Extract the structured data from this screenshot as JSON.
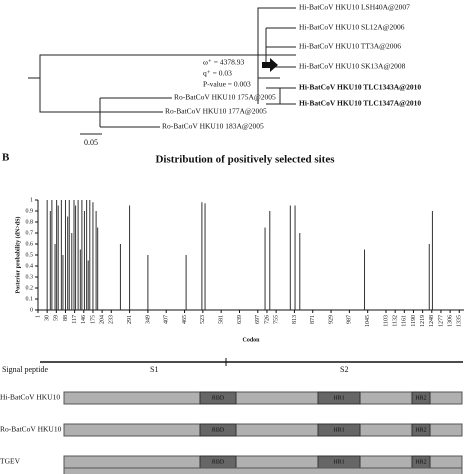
{
  "tree": {
    "taxa": [
      "Hi-BatCoV HKU10 LSH40A@2007",
      "Hi-BatCoV HKU10 SL12A@2006",
      "Hi-BatCoV HKU10 TT3A@2006",
      "Hi-BatCoV HKU10 SK13A@2008",
      "Hi-BatCoV HKU10 TLC1343A@2010",
      "Hi-BatCoV HKU10 TLC1347A@2010",
      "Ro-BatCoV HKU10 175A@2005",
      "Ro-BatCoV HKU10 177A@2005",
      "Ro-BatCoV HKU10 183A@2005"
    ],
    "annotations": [
      "ω⁺ = 4378.93",
      "q⁺ = 0.03",
      "P-value = 0.003"
    ],
    "scale": "0.05"
  },
  "panel_label": "B",
  "chart_data": {
    "type": "bar",
    "title": "Distribution of positively selected sites",
    "y_label": "Posterior probability (dN>dS)",
    "x_label": "Codon",
    "color": "#333333",
    "x": [
      30,
      40,
      45,
      55,
      60,
      65,
      75,
      80,
      88,
      95,
      100,
      108,
      115,
      120,
      128,
      135,
      140,
      148,
      155,
      160,
      165,
      175,
      185,
      190,
      262,
      291,
      349,
      470,
      520,
      530,
      720,
      735,
      800,
      815,
      830,
      1035,
      1240,
      1250
    ],
    "values": [
      1,
      0.9,
      1,
      0.6,
      1,
      0.95,
      1,
      0.5,
      1,
      0.85,
      1,
      0.7,
      1,
      0.95,
      1,
      0.55,
      1,
      0.9,
      1,
      0.45,
      1,
      0.98,
      0.9,
      0.75,
      0.6,
      0.95,
      0.5,
      0.5,
      0.98,
      0.97,
      0.75,
      0.9,
      0.95,
      0.95,
      0.7,
      0.55,
      0.6,
      0.9
    ],
    "xlim": [
      1,
      1350
    ],
    "xticks": [
      1,
      30,
      59,
      88,
      117,
      146,
      175,
      204,
      233,
      291,
      349,
      407,
      465,
      523,
      581,
      639,
      697,
      726,
      755,
      813,
      871,
      929,
      987,
      1045,
      1103,
      1132,
      1161,
      1190,
      1219,
      1248,
      1277,
      1306,
      1335
    ],
    "ylim": [
      0,
      1
    ],
    "yticks": [
      0,
      0.1,
      0.2,
      0.3,
      0.4,
      0.5,
      0.6,
      0.7,
      0.8,
      0.9,
      1
    ]
  },
  "regions": [
    "Signal peptide",
    "S1",
    "S2"
  ],
  "proteins": [
    {
      "name": "Hi-BatCoV HKU10",
      "domains": [
        "RBD",
        "HR1",
        "HR2"
      ]
    },
    {
      "name": "Ro-BatCoV HKU10",
      "domains": [
        "RBD",
        "HR1",
        "HR2"
      ]
    },
    {
      "name": "TGEV",
      "domains": [
        "RBD",
        "HR1",
        "HR2"
      ]
    }
  ]
}
